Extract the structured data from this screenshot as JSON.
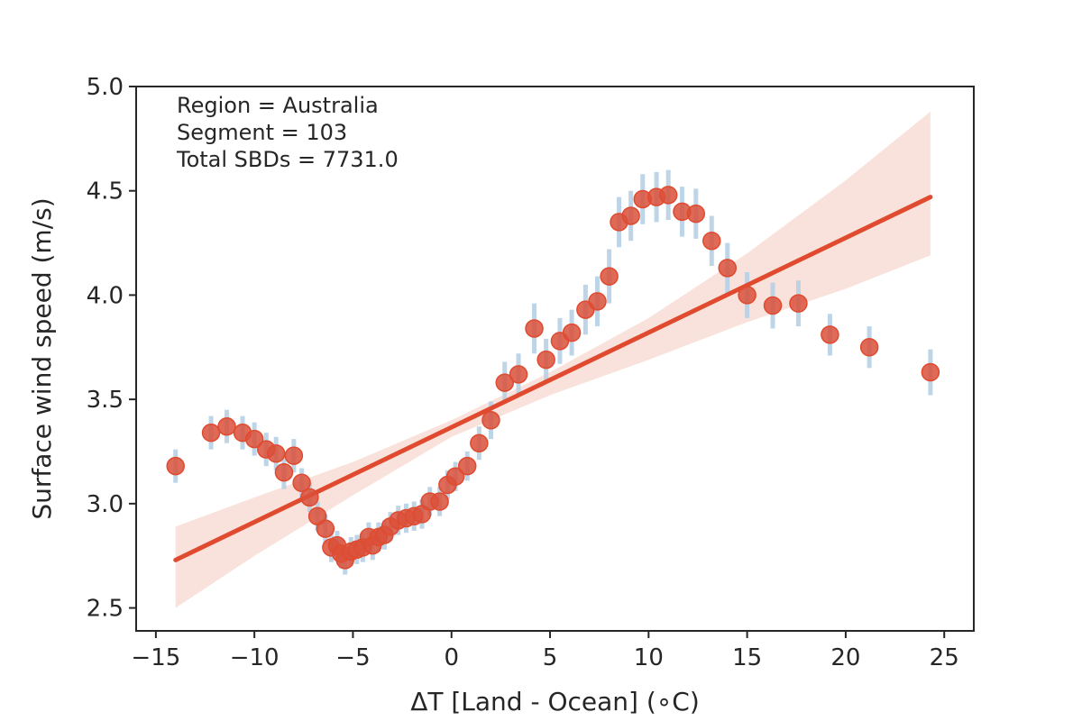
{
  "chart_data": {
    "type": "scatter",
    "title": "",
    "xlabel": "ΔT [Land - Ocean] (∘C)",
    "ylabel": "Surface wind speed (m/s)",
    "xlim": [
      -16,
      26.5
    ],
    "ylim": [
      2.39,
      5.0
    ],
    "x_ticks": [
      -15,
      -10,
      -5,
      0,
      5,
      10,
      15,
      20,
      25
    ],
    "x_tick_labels": [
      "−15",
      "−10",
      "−5",
      "0",
      "5",
      "10",
      "15",
      "20",
      "25"
    ],
    "y_ticks": [
      2.5,
      3.0,
      3.5,
      4.0,
      4.5,
      5.0
    ],
    "y_tick_labels": [
      "2.5",
      "3.0",
      "3.5",
      "4.0",
      "4.5",
      "5.0"
    ],
    "grid": false,
    "annotations": [
      "Region = Australia",
      "Segment = 103",
      "Total SBDs = 7731.0"
    ],
    "colors": {
      "point": "#d9503a",
      "point_edge": "#e04a2f",
      "errorbar": "#b6d0e4",
      "regression_line": "#e04a2f",
      "confidence_band": "#f8ddd6",
      "axes": "#262626"
    },
    "series": [
      {
        "points": [
          {
            "x": -14.0,
            "y": 3.18,
            "err": 0.08
          },
          {
            "x": -12.2,
            "y": 3.34,
            "err": 0.08
          },
          {
            "x": -11.4,
            "y": 3.37,
            "err": 0.08
          },
          {
            "x": -10.6,
            "y": 3.34,
            "err": 0.08
          },
          {
            "x": -10.0,
            "y": 3.31,
            "err": 0.08
          },
          {
            "x": -9.4,
            "y": 3.26,
            "err": 0.08
          },
          {
            "x": -8.9,
            "y": 3.24,
            "err": 0.08
          },
          {
            "x": -8.5,
            "y": 3.15,
            "err": 0.08
          },
          {
            "x": -8.0,
            "y": 3.23,
            "err": 0.08
          },
          {
            "x": -7.6,
            "y": 3.1,
            "err": 0.07
          },
          {
            "x": -7.2,
            "y": 3.03,
            "err": 0.07
          },
          {
            "x": -6.8,
            "y": 2.94,
            "err": 0.07
          },
          {
            "x": -6.4,
            "y": 2.88,
            "err": 0.07
          },
          {
            "x": -6.1,
            "y": 2.79,
            "err": 0.07
          },
          {
            "x": -5.8,
            "y": 2.8,
            "err": 0.07
          },
          {
            "x": -5.6,
            "y": 2.76,
            "err": 0.07
          },
          {
            "x": -5.4,
            "y": 2.73,
            "err": 0.07
          },
          {
            "x": -5.1,
            "y": 2.77,
            "err": 0.07
          },
          {
            "x": -4.8,
            "y": 2.78,
            "err": 0.07
          },
          {
            "x": -4.5,
            "y": 2.79,
            "err": 0.07
          },
          {
            "x": -4.2,
            "y": 2.84,
            "err": 0.07
          },
          {
            "x": -4.0,
            "y": 2.8,
            "err": 0.07
          },
          {
            "x": -3.7,
            "y": 2.84,
            "err": 0.07
          },
          {
            "x": -3.4,
            "y": 2.85,
            "err": 0.07
          },
          {
            "x": -3.1,
            "y": 2.89,
            "err": 0.07
          },
          {
            "x": -2.7,
            "y": 2.92,
            "err": 0.07
          },
          {
            "x": -2.3,
            "y": 2.93,
            "err": 0.07
          },
          {
            "x": -1.9,
            "y": 2.94,
            "err": 0.07
          },
          {
            "x": -1.5,
            "y": 2.95,
            "err": 0.07
          },
          {
            "x": -1.1,
            "y": 3.01,
            "err": 0.07
          },
          {
            "x": -0.6,
            "y": 3.01,
            "err": 0.07
          },
          {
            "x": -0.2,
            "y": 3.09,
            "err": 0.07
          },
          {
            "x": 0.2,
            "y": 3.13,
            "err": 0.07
          },
          {
            "x": 0.8,
            "y": 3.18,
            "err": 0.07
          },
          {
            "x": 1.4,
            "y": 3.29,
            "err": 0.08
          },
          {
            "x": 2.0,
            "y": 3.4,
            "err": 0.09
          },
          {
            "x": 2.7,
            "y": 3.58,
            "err": 0.1
          },
          {
            "x": 3.4,
            "y": 3.62,
            "err": 0.1
          },
          {
            "x": 4.2,
            "y": 3.84,
            "err": 0.12
          },
          {
            "x": 4.8,
            "y": 3.69,
            "err": 0.1
          },
          {
            "x": 5.5,
            "y": 3.78,
            "err": 0.11
          },
          {
            "x": 6.1,
            "y": 3.82,
            "err": 0.11
          },
          {
            "x": 6.8,
            "y": 3.93,
            "err": 0.12
          },
          {
            "x": 7.4,
            "y": 3.97,
            "err": 0.12
          },
          {
            "x": 8.0,
            "y": 4.09,
            "err": 0.13
          },
          {
            "x": 8.5,
            "y": 4.35,
            "err": 0.12
          },
          {
            "x": 9.1,
            "y": 4.38,
            "err": 0.12
          },
          {
            "x": 9.7,
            "y": 4.46,
            "err": 0.12
          },
          {
            "x": 10.4,
            "y": 4.47,
            "err": 0.12
          },
          {
            "x": 11.0,
            "y": 4.48,
            "err": 0.12
          },
          {
            "x": 11.7,
            "y": 4.4,
            "err": 0.12
          },
          {
            "x": 12.4,
            "y": 4.39,
            "err": 0.12
          },
          {
            "x": 13.2,
            "y": 4.26,
            "err": 0.12
          },
          {
            "x": 14.0,
            "y": 4.13,
            "err": 0.12
          },
          {
            "x": 15.0,
            "y": 4.0,
            "err": 0.11
          },
          {
            "x": 16.3,
            "y": 3.95,
            "err": 0.11
          },
          {
            "x": 17.6,
            "y": 3.96,
            "err": 0.11
          },
          {
            "x": 19.2,
            "y": 3.81,
            "err": 0.1
          },
          {
            "x": 21.2,
            "y": 3.75,
            "err": 0.1
          },
          {
            "x": 24.3,
            "y": 3.63,
            "err": 0.11
          }
        ]
      }
    ],
    "regression": {
      "x": [
        -14.0,
        24.3
      ],
      "y": [
        2.73,
        4.47
      ]
    },
    "confidence_band": {
      "x": [
        -14.0,
        -10.0,
        -5.0,
        0.0,
        5.0,
        10.0,
        15.0,
        20.0,
        24.3
      ],
      "lower": [
        2.5,
        2.75,
        3.04,
        3.32,
        3.52,
        3.69,
        3.87,
        4.03,
        4.19
      ],
      "upper": [
        2.89,
        3.03,
        3.2,
        3.4,
        3.63,
        3.89,
        4.2,
        4.55,
        4.88
      ]
    }
  }
}
